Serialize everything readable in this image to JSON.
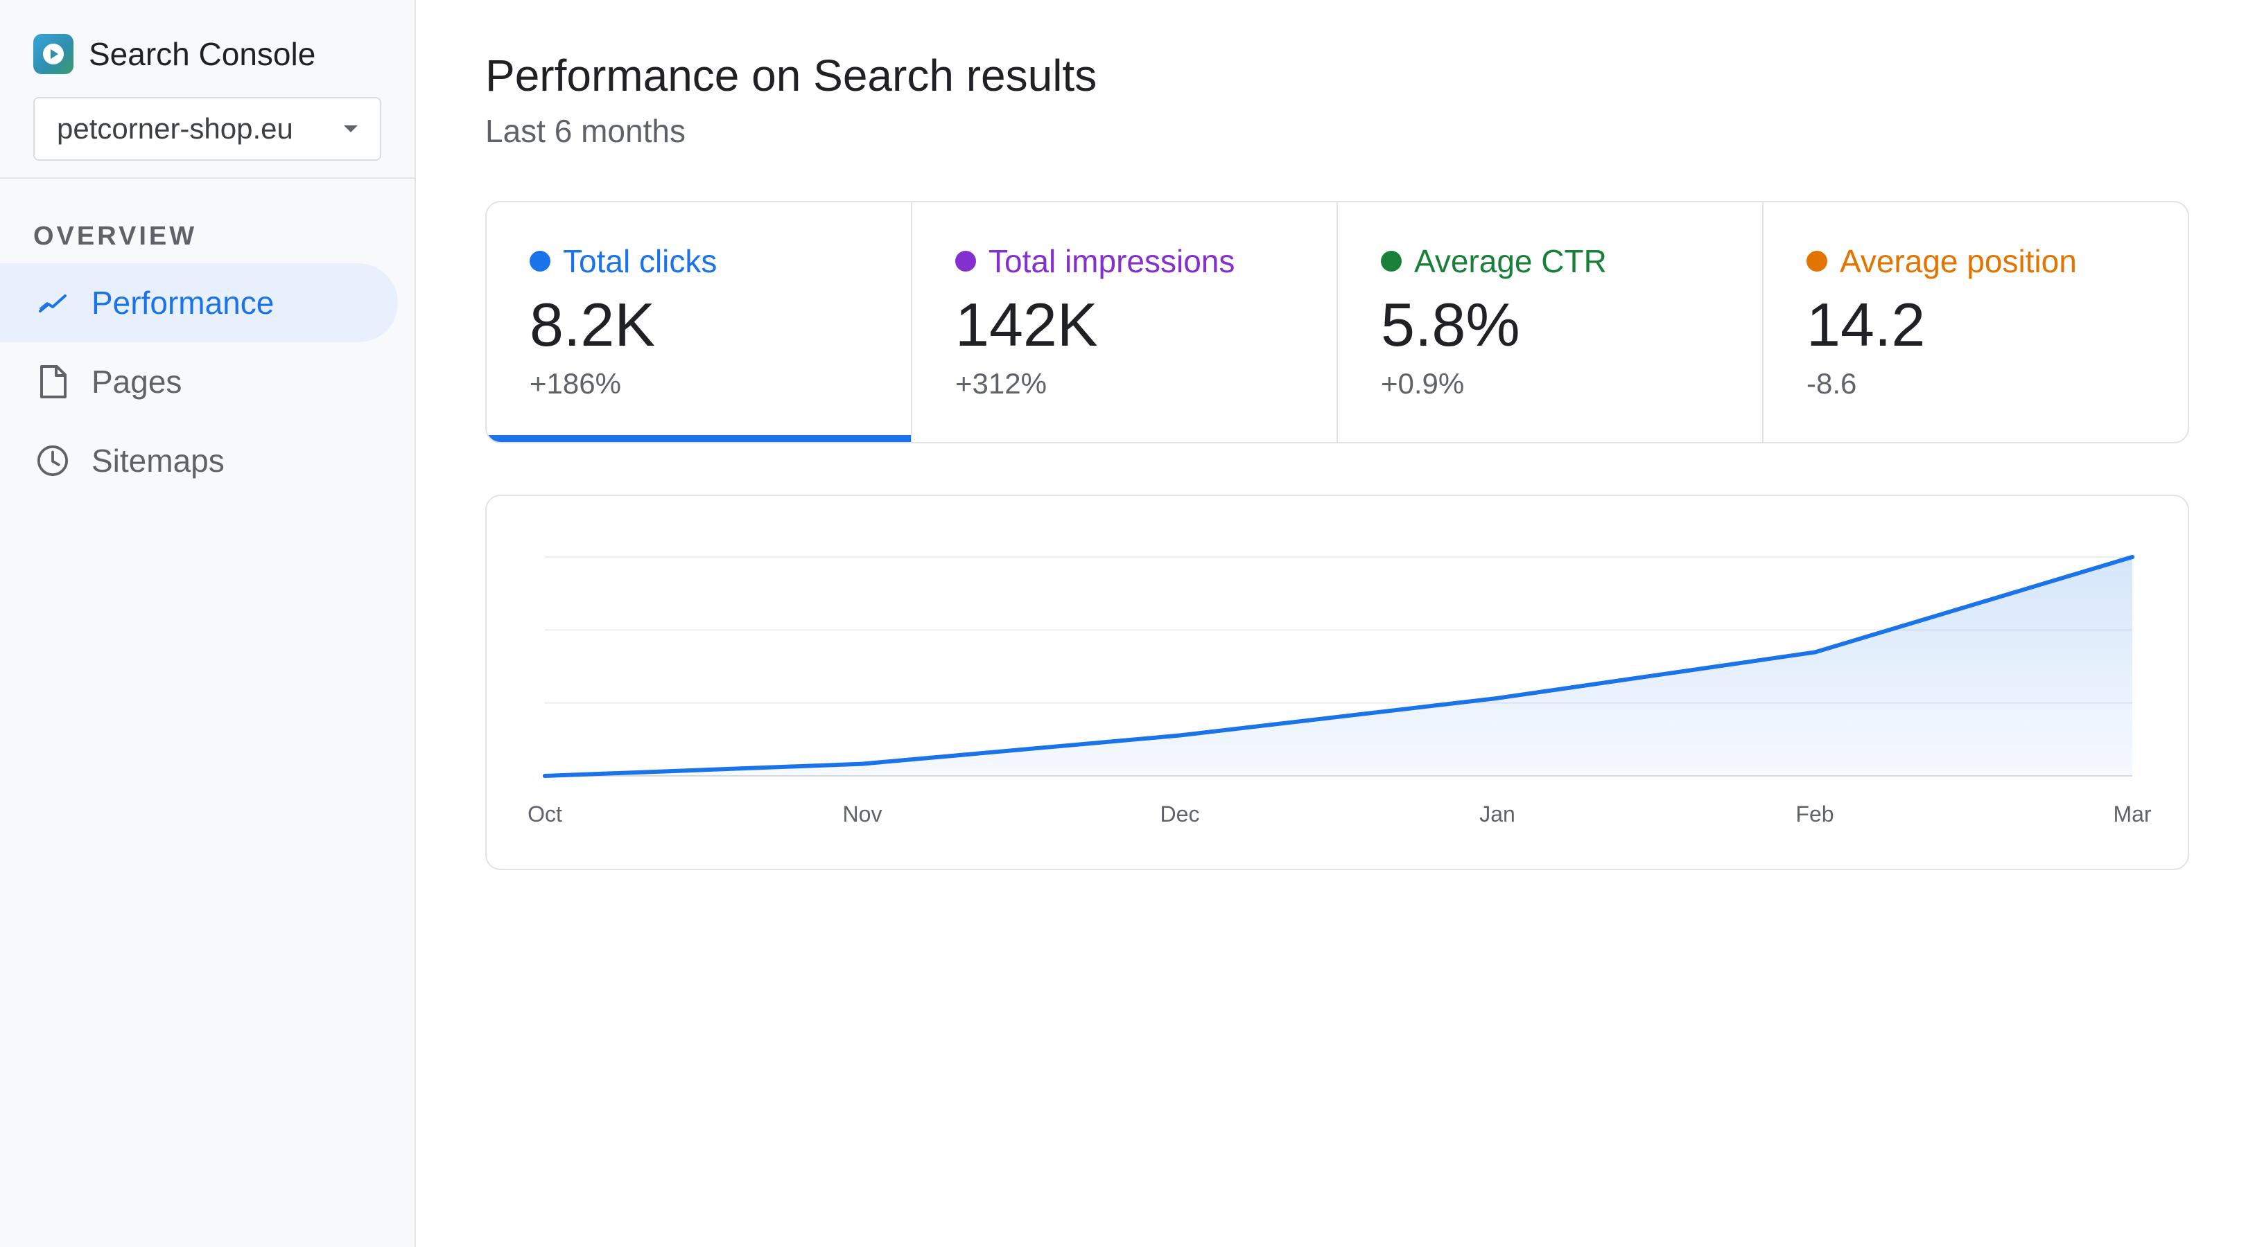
{
  "app": {
    "title": "Search Console"
  },
  "property": {
    "selected": "petcorner-shop.eu"
  },
  "sidebar": {
    "section_label": "OVERVIEW",
    "items": [
      {
        "label": "Performance",
        "icon": "trend-icon",
        "active": true
      },
      {
        "label": "Pages",
        "icon": "page-icon",
        "active": false
      },
      {
        "label": "Sitemaps",
        "icon": "clock-icon",
        "active": false
      }
    ]
  },
  "main": {
    "title": "Performance on Search results",
    "subtitle": "Last 6 months"
  },
  "metrics": [
    {
      "label": "Total clicks",
      "value": "8.2K",
      "change": "+186%",
      "color": "#1a73e8",
      "selected": true
    },
    {
      "label": "Total impressions",
      "value": "142K",
      "change": "+312%",
      "color": "#8430ce",
      "selected": false
    },
    {
      "label": "Average CTR",
      "value": "5.8%",
      "change": "+0.9%",
      "color": "#188038",
      "selected": false
    },
    {
      "label": "Average position",
      "value": "14.2",
      "change": "-8.6",
      "color": "#e37400",
      "selected": false
    }
  ],
  "chart_data": {
    "type": "area",
    "categories": [
      "Oct",
      "Nov",
      "Dec",
      "Jan",
      "Feb",
      "Mar"
    ],
    "series": [
      {
        "values": [
          0,
          0.055,
          0.185,
          0.355,
          0.565,
          1.0
        ],
        "color": "#1a73e8"
      }
    ],
    "ylim": [
      0,
      1
    ],
    "grid": true,
    "yaxis_labels": false
  }
}
